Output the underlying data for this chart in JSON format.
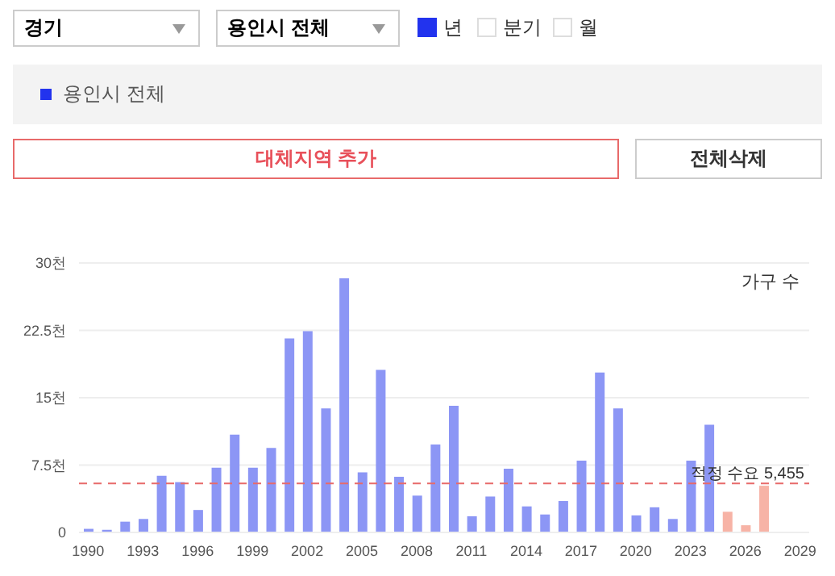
{
  "chart_data": {
    "type": "bar",
    "ylabel": "가구 수",
    "annotations": [
      "경기",
      "용인시 전체",
      "년",
      "분기",
      "월",
      "용인시 전체",
      "대체지역 추가",
      "전체삭제"
    ],
    "x": [
      1990,
      1991,
      1992,
      1993,
      1994,
      1995,
      1996,
      1997,
      1998,
      1999,
      2000,
      2001,
      2002,
      2003,
      2004,
      2005,
      2006,
      2007,
      2008,
      2009,
      2010,
      2011,
      2012,
      2013,
      2014,
      2015,
      2016,
      2017,
      2018,
      2019,
      2020,
      2021,
      2022,
      2023,
      2024,
      2025,
      2026,
      2027
    ],
    "values": [
      0.4,
      0.3,
      1.2,
      1.5,
      6.3,
      5.6,
      2.5,
      7.2,
      10.9,
      7.2,
      9.4,
      21.6,
      22.4,
      13.8,
      28.3,
      6.7,
      18.1,
      6.2,
      4.1,
      9.8,
      14.1,
      1.8,
      4.0,
      7.1,
      2.9,
      2.0,
      3.5,
      8.0,
      17.8,
      13.8,
      1.9,
      2.8,
      1.5,
      8.0,
      12.0,
      2.3,
      0.8,
      5.2
    ],
    "colors": [
      "#8c96f5",
      "#8c96f5",
      "#8c96f5",
      "#8c96f5",
      "#8c96f5",
      "#8c96f5",
      "#8c96f5",
      "#8c96f5",
      "#8c96f5",
      "#8c96f5",
      "#8c96f5",
      "#8c96f5",
      "#8c96f5",
      "#8c96f5",
      "#8c96f5",
      "#8c96f5",
      "#8c96f5",
      "#8c96f5",
      "#8c96f5",
      "#8c96f5",
      "#8c96f5",
      "#8c96f5",
      "#8c96f5",
      "#8c96f5",
      "#8c96f5",
      "#8c96f5",
      "#8c96f5",
      "#8c96f5",
      "#8c96f5",
      "#8c96f5",
      "#8c96f5",
      "#8c96f5",
      "#8c96f5",
      "#8c96f5",
      "#8c96f5",
      "#f7b3a6",
      "#f7b3a6",
      "#f7b3a6"
    ],
    "xlim": [
      1989.5,
      2029.5
    ],
    "xticks": [
      1990,
      1993,
      1996,
      1999,
      2002,
      2005,
      2008,
      2011,
      2014,
      2017,
      2020,
      2023,
      2026,
      2029
    ],
    "ylim": [
      0,
      30
    ],
    "yticks": [
      0,
      {
        "value": 7.5,
        "label": "7.5천"
      },
      {
        "value": 15,
        "label": "15천"
      },
      {
        "value": 22.5,
        "label": "22.5천"
      },
      {
        "value": 30,
        "label": "30천"
      }
    ],
    "grid": "y",
    "ref_lines": [
      {
        "axis": "y",
        "value": 5.455,
        "label": "적정 수요 5,455",
        "color": "#e86a6a",
        "line_style": "dashed"
      }
    ]
  }
}
